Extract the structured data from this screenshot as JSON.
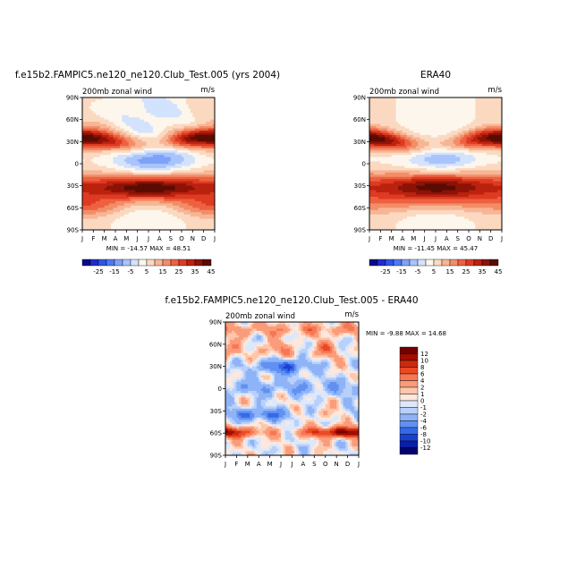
{
  "chart_data": [
    {
      "type": "heatmap",
      "title": "f.e15b2.FAMPIC5.ne120_ne120.Club_Test.005 (yrs 2004)",
      "left_string": "200mb zonal wind",
      "right_string": "m/s",
      "x_tick_labels": [
        "J",
        "F",
        "M",
        "A",
        "M",
        "J",
        "J",
        "A",
        "S",
        "O",
        "N",
        "D",
        "J"
      ],
      "y_tick_labels": [
        "90S",
        "60S",
        "30S",
        "0",
        "30N",
        "60N",
        "90N"
      ],
      "ylim": [
        -90,
        90
      ],
      "stats": "MIN = -14.57 MAX =  48.51",
      "colorbar": {
        "orientation": "horizontal",
        "labels": [
          "-25",
          "-15",
          "-5",
          "5",
          "15",
          "25",
          "35",
          "45"
        ]
      }
    },
    {
      "type": "heatmap",
      "title": "ERA40",
      "left_string": "200mb zonal wind",
      "right_string": "m/s",
      "x_tick_labels": [
        "J",
        "F",
        "M",
        "A",
        "M",
        "J",
        "J",
        "A",
        "S",
        "O",
        "N",
        "D",
        "J"
      ],
      "y_tick_labels": [
        "90S",
        "60S",
        "30S",
        "0",
        "30N",
        "60N",
        "90N"
      ],
      "ylim": [
        -90,
        90
      ],
      "stats": "MIN = -11.45 MAX =  45.47",
      "colorbar": {
        "orientation": "horizontal",
        "labels": [
          "-25",
          "-15",
          "-5",
          "5",
          "15",
          "25",
          "35",
          "45"
        ]
      }
    },
    {
      "type": "heatmap",
      "title": "f.e15b2.FAMPIC5.ne120_ne120.Club_Test.005  -  ERA40",
      "left_string": "200mb zonal wind",
      "right_string": "m/s",
      "x_tick_labels": [
        "J",
        "F",
        "M",
        "A",
        "M",
        "J",
        "J",
        "A",
        "S",
        "O",
        "N",
        "D",
        "J"
      ],
      "y_tick_labels": [
        "90S",
        "60S",
        "30S",
        "0",
        "30N",
        "60N",
        "90N"
      ],
      "ylim": [
        -90,
        90
      ],
      "stats": "MIN =   -9.88 MAX =  14.68",
      "colorbar": {
        "orientation": "vertical",
        "labels": [
          "12",
          "10",
          "8",
          "6",
          "4",
          "2",
          "1",
          "0",
          "-1",
          "-2",
          "-4",
          "-6",
          "-8",
          "-10",
          "-12"
        ]
      }
    }
  ],
  "palettes": {
    "full": [
      "#08088e",
      "#1f2ccc",
      "#2f55e8",
      "#4f78f2",
      "#7ea2f8",
      "#a9c4fb",
      "#d3e2fd",
      "#fdf6ec",
      "#fbd9c0",
      "#f8b595",
      "#f38d68",
      "#ee6140",
      "#de3b22",
      "#bb220f",
      "#8c1306",
      "#5a0c02"
    ],
    "diff": [
      "#740000",
      "#a00e00",
      "#cc2a0e",
      "#ea4a22",
      "#f77754",
      "#fa9c7b",
      "#fdc7ac",
      "#fee7dc",
      "#dce8fb",
      "#b8d0fa",
      "#8eb3f7",
      "#6091f2",
      "#3569ea",
      "#1b40cf",
      "#0b1fa3",
      "#040470"
    ]
  }
}
